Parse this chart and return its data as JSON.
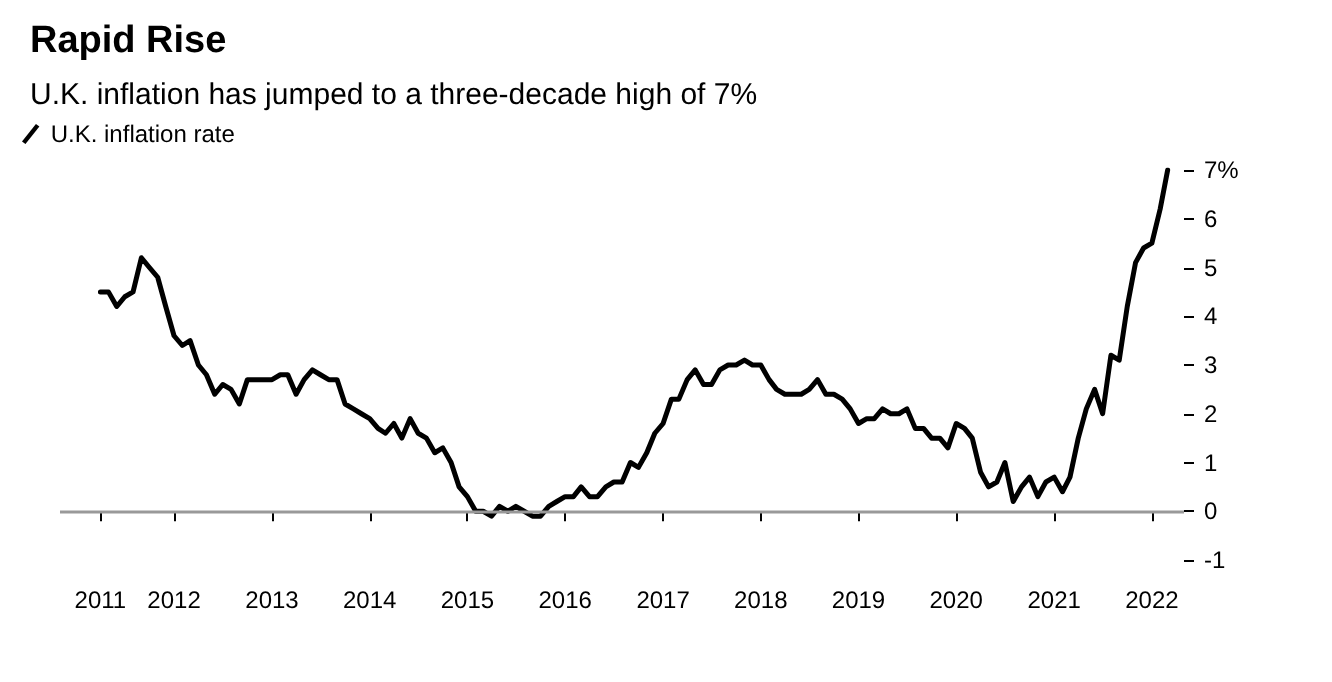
{
  "chart_data": {
    "type": "line",
    "title": "Rapid Rise",
    "subtitle": "U.K. inflation has jumped to a three-decade high of 7%",
    "x": [
      "2011-04",
      "2011-05",
      "2011-06",
      "2011-07",
      "2011-08",
      "2011-09",
      "2011-10",
      "2011-11",
      "2011-12",
      "2012-01",
      "2012-02",
      "2012-03",
      "2012-04",
      "2012-05",
      "2012-06",
      "2012-07",
      "2012-08",
      "2012-09",
      "2012-10",
      "2012-11",
      "2012-12",
      "2013-01",
      "2013-02",
      "2013-03",
      "2013-04",
      "2013-05",
      "2013-06",
      "2013-07",
      "2013-08",
      "2013-09",
      "2013-10",
      "2013-11",
      "2013-12",
      "2014-01",
      "2014-02",
      "2014-03",
      "2014-04",
      "2014-05",
      "2014-06",
      "2014-07",
      "2014-08",
      "2014-09",
      "2014-10",
      "2014-11",
      "2014-12",
      "2015-01",
      "2015-02",
      "2015-03",
      "2015-04",
      "2015-05",
      "2015-06",
      "2015-07",
      "2015-08",
      "2015-09",
      "2015-10",
      "2015-11",
      "2015-12",
      "2016-01",
      "2016-02",
      "2016-03",
      "2016-04",
      "2016-05",
      "2016-06",
      "2016-07",
      "2016-08",
      "2016-09",
      "2016-10",
      "2016-11",
      "2016-12",
      "2017-01",
      "2017-02",
      "2017-03",
      "2017-04",
      "2017-05",
      "2017-06",
      "2017-07",
      "2017-08",
      "2017-09",
      "2017-10",
      "2017-11",
      "2017-12",
      "2018-01",
      "2018-02",
      "2018-03",
      "2018-04",
      "2018-05",
      "2018-06",
      "2018-07",
      "2018-08",
      "2018-09",
      "2018-10",
      "2018-11",
      "2018-12",
      "2019-01",
      "2019-02",
      "2019-03",
      "2019-04",
      "2019-05",
      "2019-06",
      "2019-07",
      "2019-08",
      "2019-09",
      "2019-10",
      "2019-11",
      "2019-12",
      "2020-01",
      "2020-02",
      "2020-03",
      "2020-04",
      "2020-05",
      "2020-06",
      "2020-07",
      "2020-08",
      "2020-09",
      "2020-10",
      "2020-11",
      "2020-12",
      "2021-01",
      "2021-02",
      "2021-03",
      "2021-04",
      "2021-05",
      "2021-06",
      "2021-07",
      "2021-08",
      "2021-09",
      "2021-10",
      "2021-11",
      "2021-12",
      "2022-01",
      "2022-02",
      "2022-03"
    ],
    "series": [
      {
        "name": "U.K. inflation rate",
        "color": "#000000",
        "values": [
          4.5,
          4.5,
          4.2,
          4.4,
          4.5,
          5.2,
          5.0,
          4.8,
          4.2,
          3.6,
          3.4,
          3.5,
          3.0,
          2.8,
          2.4,
          2.6,
          2.5,
          2.2,
          2.7,
          2.7,
          2.7,
          2.7,
          2.8,
          2.8,
          2.4,
          2.7,
          2.9,
          2.8,
          2.7,
          2.7,
          2.2,
          2.1,
          2.0,
          1.9,
          1.7,
          1.6,
          1.8,
          1.5,
          1.9,
          1.6,
          1.5,
          1.2,
          1.3,
          1.0,
          0.5,
          0.3,
          0.0,
          0.0,
          -0.1,
          0.1,
          0.0,
          0.1,
          0.0,
          -0.1,
          -0.1,
          0.1,
          0.2,
          0.3,
          0.3,
          0.5,
          0.3,
          0.3,
          0.5,
          0.6,
          0.6,
          1.0,
          0.9,
          1.2,
          1.6,
          1.8,
          2.3,
          2.3,
          2.7,
          2.9,
          2.6,
          2.6,
          2.9,
          3.0,
          3.0,
          3.1,
          3.0,
          3.0,
          2.7,
          2.5,
          2.4,
          2.4,
          2.4,
          2.5,
          2.7,
          2.4,
          2.4,
          2.3,
          2.1,
          1.8,
          1.9,
          1.9,
          2.1,
          2.0,
          2.0,
          2.1,
          1.7,
          1.7,
          1.5,
          1.5,
          1.3,
          1.8,
          1.7,
          1.5,
          0.8,
          0.5,
          0.6,
          1.0,
          0.2,
          0.5,
          0.7,
          0.3,
          0.6,
          0.7,
          0.4,
          0.7,
          1.5,
          2.1,
          2.5,
          2.0,
          3.2,
          3.1,
          4.2,
          5.1,
          5.4,
          5.5,
          6.2,
          7.0
        ]
      }
    ],
    "xlim": [
      "2010-11",
      "2022-05"
    ],
    "xticks": [
      {
        "value": "2011-04",
        "label": "2011"
      },
      {
        "value": "2012-01",
        "label": "2012"
      },
      {
        "value": "2013-01",
        "label": "2013"
      },
      {
        "value": "2014-01",
        "label": "2014"
      },
      {
        "value": "2015-01",
        "label": "2015"
      },
      {
        "value": "2016-01",
        "label": "2016"
      },
      {
        "value": "2017-01",
        "label": "2017"
      },
      {
        "value": "2018-01",
        "label": "2018"
      },
      {
        "value": "2019-01",
        "label": "2019"
      },
      {
        "value": "2020-01",
        "label": "2020"
      },
      {
        "value": "2021-01",
        "label": "2021"
      },
      {
        "value": "2022-01",
        "label": "2022"
      }
    ],
    "ylim": [
      -1,
      7
    ],
    "yticks": [
      -1,
      0,
      1,
      2,
      3,
      4,
      5,
      6,
      {
        "value": 7,
        "label": "7%"
      }
    ],
    "ref_lines": [
      {
        "axis": "y",
        "value": 0,
        "color": "#999999"
      }
    ],
    "legend": "top left",
    "grid": false,
    "marker": "none",
    "line_style": "solid"
  }
}
